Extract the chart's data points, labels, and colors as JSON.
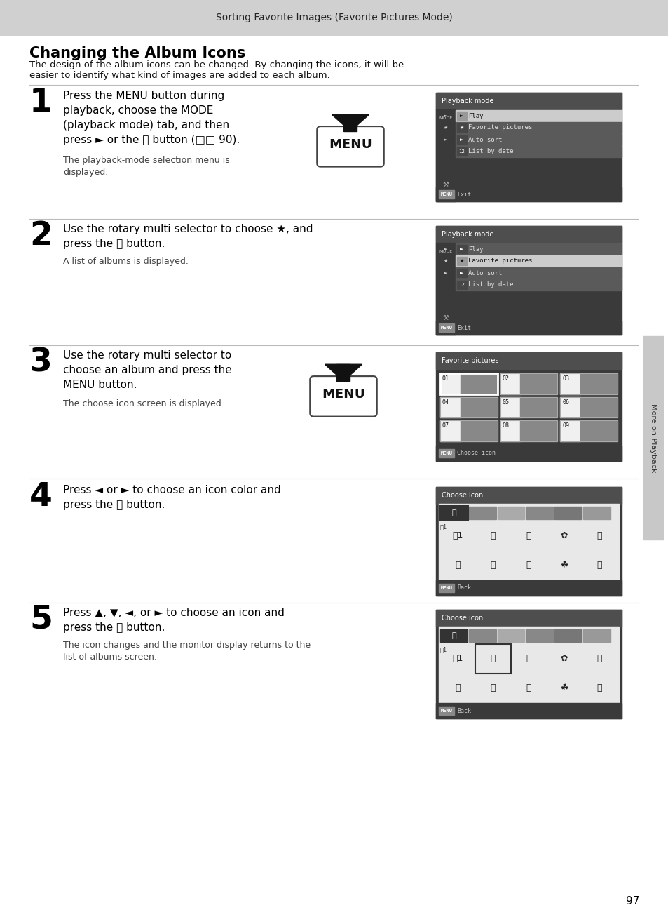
{
  "page_bg": "#ffffff",
  "header_bg": "#d0d0d0",
  "header_text": "Sorting Favorite Images (Favorite Pictures Mode)",
  "title": "Changing the Album Icons",
  "intro_line1": "The design of the album icons can be changed. By changing the icons, it will be",
  "intro_line2": "easier to identify what kind of images are added to each album.",
  "footer_text": "97",
  "sidebar_text": "More on Playback"
}
